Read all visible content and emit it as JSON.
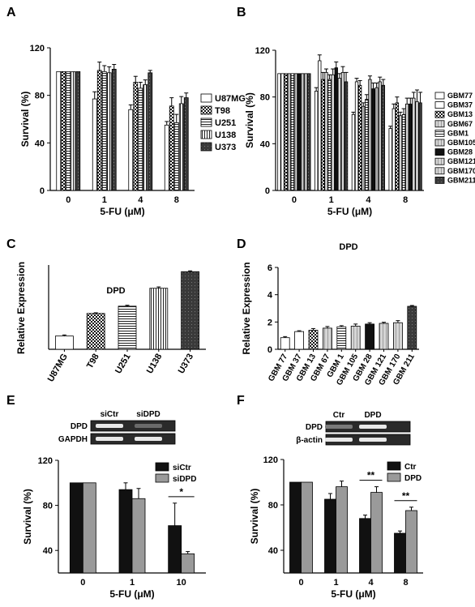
{
  "patterns": {
    "solid_white": "#ffffff",
    "black": "#111111",
    "dark_gray": "#3a3a3a",
    "light_gray": "#c8c8c8",
    "mid_gray": "#9a9a9a"
  },
  "chart_data": [
    {
      "panel": "A",
      "type": "bar",
      "ylabel": "Survival (%)",
      "xlabel": "5-FU (μM)",
      "ylim": [
        0,
        120
      ],
      "yticks": [
        0,
        40,
        80,
        120
      ],
      "categories": [
        "0",
        "1",
        "4",
        "8"
      ],
      "legend_position": "right",
      "series": [
        {
          "name": "U87MG",
          "pattern": "white",
          "values": [
            100,
            77,
            68,
            55
          ],
          "errors": [
            0,
            6,
            4,
            3
          ]
        },
        {
          "name": "T98",
          "pattern": "checker",
          "values": [
            100,
            101,
            91,
            71
          ],
          "errors": [
            0,
            7,
            5,
            7
          ]
        },
        {
          "name": "U251",
          "pattern": "hlines",
          "values": [
            100,
            100,
            86,
            57
          ],
          "errors": [
            0,
            5,
            5,
            7
          ]
        },
        {
          "name": "U138",
          "pattern": "vlines",
          "values": [
            100,
            99,
            89,
            73
          ],
          "errors": [
            0,
            5,
            4,
            6
          ]
        },
        {
          "name": "U373",
          "pattern": "dark",
          "values": [
            100,
            102,
            99,
            78
          ],
          "errors": [
            0,
            4,
            2,
            4
          ]
        }
      ]
    },
    {
      "panel": "B",
      "type": "bar",
      "ylabel": "Survival (%)",
      "xlabel": "5-FU (μM)",
      "ylim": [
        0,
        120
      ],
      "yticks": [
        0,
        40,
        80,
        120
      ],
      "categories": [
        "0",
        "1",
        "4",
        "8"
      ],
      "legend_position": "right",
      "series": [
        {
          "name": "GBM77",
          "pattern": "white",
          "values": [
            100,
            85,
            65,
            53
          ],
          "errors": [
            0,
            3,
            2,
            2
          ]
        },
        {
          "name": "GBM37",
          "pattern": "white",
          "values": [
            100,
            111,
            93,
            70
          ],
          "errors": [
            0,
            5,
            3,
            4
          ]
        },
        {
          "name": "GBM13",
          "pattern": "checker",
          "values": [
            100,
            95,
            90,
            75
          ],
          "errors": [
            0,
            6,
            4,
            5
          ]
        },
        {
          "name": "GBM67",
          "pattern": "light",
          "values": [
            100,
            101,
            72,
            64
          ],
          "errors": [
            0,
            3,
            3,
            3
          ]
        },
        {
          "name": "GBM1",
          "pattern": "hlines",
          "values": [
            100,
            95,
            78,
            65
          ],
          "errors": [
            0,
            4,
            4,
            5
          ]
        },
        {
          "name": "GBM105",
          "pattern": "light",
          "values": [
            100,
            99,
            95,
            74
          ],
          "errors": [
            0,
            5,
            3,
            5
          ]
        },
        {
          "name": "GBM28",
          "pattern": "black",
          "values": [
            100,
            105,
            87,
            74
          ],
          "errors": [
            0,
            5,
            5,
            5
          ]
        },
        {
          "name": "GBM121",
          "pattern": "light",
          "values": [
            100,
            96,
            88,
            79
          ],
          "errors": [
            0,
            4,
            4,
            5
          ]
        },
        {
          "name": "GBM170",
          "pattern": "light",
          "values": [
            100,
            101,
            93,
            76
          ],
          "errors": [
            0,
            5,
            4,
            10
          ]
        },
        {
          "name": "GBM211",
          "pattern": "dark",
          "values": [
            100,
            93,
            90,
            75
          ],
          "errors": [
            0,
            8,
            5,
            9
          ]
        }
      ]
    },
    {
      "panel": "C",
      "type": "bar",
      "title": "DPD",
      "ylabel": "Relative Expression",
      "ylim": [
        0,
        8
      ],
      "categories": [
        "U87MG",
        "T98",
        "U251",
        "U138",
        "U373"
      ],
      "values": [
        1.0,
        2.7,
        3.25,
        4.6,
        5.85
      ],
      "errors": [
        0.08,
        0.05,
        0.07,
        0.1,
        0.06
      ],
      "patterns": [
        "white",
        "checker",
        "hlines",
        "vlines",
        "dark"
      ]
    },
    {
      "panel": "D",
      "type": "bar",
      "title": "DPD",
      "ylabel": "Relative Expression",
      "ylim": [
        0,
        6
      ],
      "yticks": [
        0,
        2,
        4,
        6
      ],
      "categories": [
        "GBM 77",
        "GBM 37",
        "GBM 13",
        "GBM 67",
        "GBM 1",
        "GBM 105",
        "GBM 28",
        "GBM 121",
        "GBM 170",
        "GBM 211"
      ],
      "values": [
        0.85,
        1.3,
        1.4,
        1.55,
        1.65,
        1.7,
        1.85,
        1.9,
        1.95,
        3.15
      ],
      "errors": [
        0.08,
        0.06,
        0.12,
        0.12,
        0.08,
        0.15,
        0.1,
        0.08,
        0.15,
        0.06
      ],
      "patterns": [
        "white",
        "white",
        "checker",
        "light",
        "hlines",
        "light",
        "black",
        "light",
        "light",
        "dark"
      ]
    },
    {
      "panel": "E",
      "type": "bar",
      "ylabel": "Survival (%)",
      "xlabel": "5-FU (μM)",
      "ylim": [
        20,
        120
      ],
      "yticks": [
        40,
        80,
        120
      ],
      "categories": [
        "0",
        "1",
        "10"
      ],
      "legend_position": "top-right",
      "series": [
        {
          "name": "siCtr",
          "pattern": "black",
          "values": [
            100,
            94,
            62
          ],
          "errors": [
            0,
            6,
            20
          ]
        },
        {
          "name": "siDPD",
          "pattern": "gray",
          "values": [
            100,
            86,
            37
          ],
          "errors": [
            0,
            9,
            2
          ]
        }
      ],
      "significance": [
        {
          "category": "10",
          "label": "*"
        }
      ],
      "blot": {
        "lanes": [
          "siCtr",
          "siDPD"
        ],
        "rows": [
          "DPD",
          "GAPDH"
        ]
      }
    },
    {
      "panel": "F",
      "type": "bar",
      "ylabel": "Survival (%)",
      "xlabel": "5-FU (μM)",
      "ylim": [
        20,
        120
      ],
      "yticks": [
        40,
        80,
        120
      ],
      "categories": [
        "0",
        "1",
        "4",
        "8"
      ],
      "legend_position": "top-right",
      "series": [
        {
          "name": "Ctr",
          "pattern": "black",
          "values": [
            100,
            85,
            68,
            55
          ],
          "errors": [
            0,
            5,
            3,
            2
          ]
        },
        {
          "name": "DPD",
          "pattern": "gray",
          "values": [
            100,
            96,
            91,
            75
          ],
          "errors": [
            0,
            5,
            5,
            3
          ]
        }
      ],
      "significance": [
        {
          "category": "4",
          "label": "**"
        },
        {
          "category": "8",
          "label": "**"
        }
      ],
      "blot": {
        "lanes": [
          "Ctr",
          "DPD"
        ],
        "rows": [
          "DPD",
          "β-actin"
        ]
      }
    }
  ]
}
